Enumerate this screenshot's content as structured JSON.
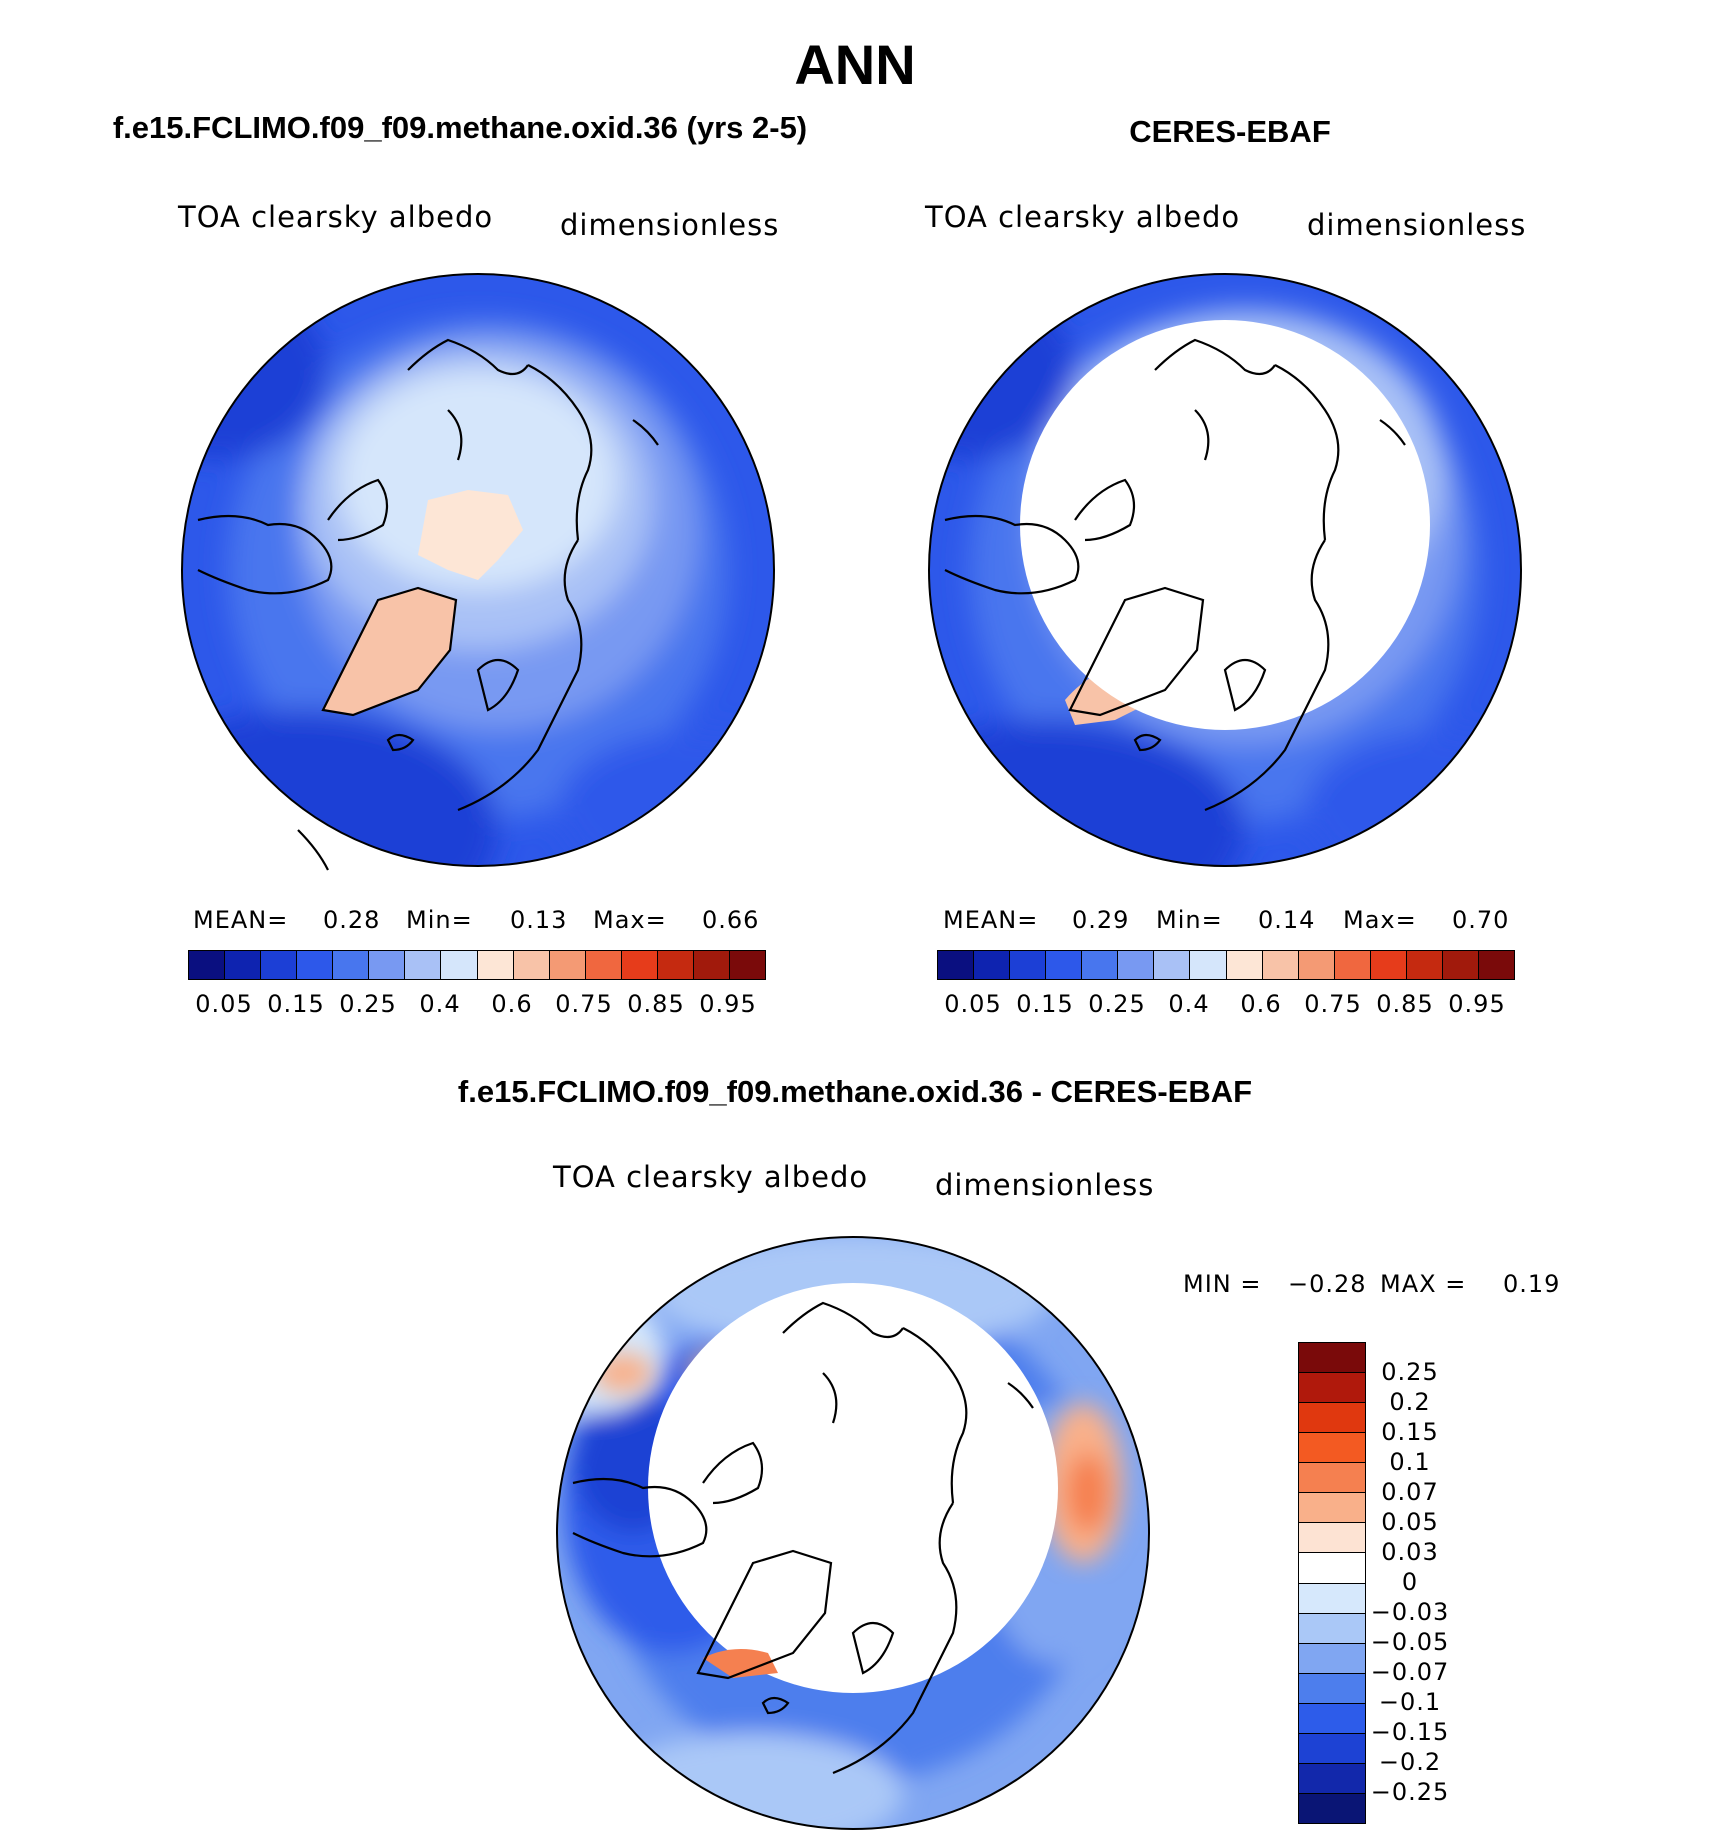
{
  "title": "ANN",
  "panels": [
    {
      "title": "f.e15.FCLIMO.f09_f09.methane.oxid.36 (yrs 2-5)",
      "variable": "TOA clearsky albedo",
      "units": "dimensionless",
      "stats": {
        "mean_label": "MEAN=",
        "mean": "0.28",
        "min_label": "Min=",
        "min": "0.13",
        "max_label": "Max=",
        "max": "0.66"
      }
    },
    {
      "title": "CERES-EBAF",
      "variable": "TOA clearsky albedo",
      "units": "dimensionless",
      "stats": {
        "mean_label": "MEAN=",
        "mean": "0.29",
        "min_label": "Min=",
        "min": "0.14",
        "max_label": "Max=",
        "max": "0.70"
      }
    }
  ],
  "diff_panel": {
    "title": "f.e15.FCLIMO.f09_f09.methane.oxid.36 - CERES-EBAF",
    "variable": "TOA clearsky albedo",
    "units": "dimensionless",
    "stats": {
      "min_label": "MIN =",
      "min": "−0.28",
      "max_label": "MAX =",
      "max": "0.19"
    }
  },
  "colorbar_abs": {
    "colors": [
      "#0a0f80",
      "#0e23b0",
      "#1c3fd6",
      "#2d58ea",
      "#4876ee",
      "#7899f2",
      "#a9c1f6",
      "#d5e6fb",
      "#fde6d6",
      "#f8c3a8",
      "#f49a74",
      "#f0673f",
      "#e63c1b",
      "#c52a10",
      "#a11a0c",
      "#7a0a0a"
    ],
    "labels": [
      "0.05",
      "0.15",
      "0.25",
      "0.4",
      "0.6",
      "0.75",
      "0.85",
      "0.95"
    ],
    "label_boundaries": [
      1,
      3,
      5,
      7,
      9,
      11,
      13,
      15
    ]
  },
  "colorbar_diff": {
    "colors": [
      "#7a0a0a",
      "#b0190c",
      "#e0380f",
      "#f35a22",
      "#f58050",
      "#f9b08a",
      "#fde3d3",
      "#ffffff",
      "#d6e8fc",
      "#aac8f7",
      "#80a6f2",
      "#4d7eed",
      "#2d5cea",
      "#1d42d4",
      "#1228ab",
      "#0a1575"
    ],
    "labels": [
      "0.25",
      "0.2",
      "0.15",
      "0.1",
      "0.07",
      "0.05",
      "0.03",
      "0",
      "−0.03",
      "−0.05",
      "−0.07",
      "−0.1",
      "−0.15",
      "−0.2",
      "−0.25"
    ]
  }
}
